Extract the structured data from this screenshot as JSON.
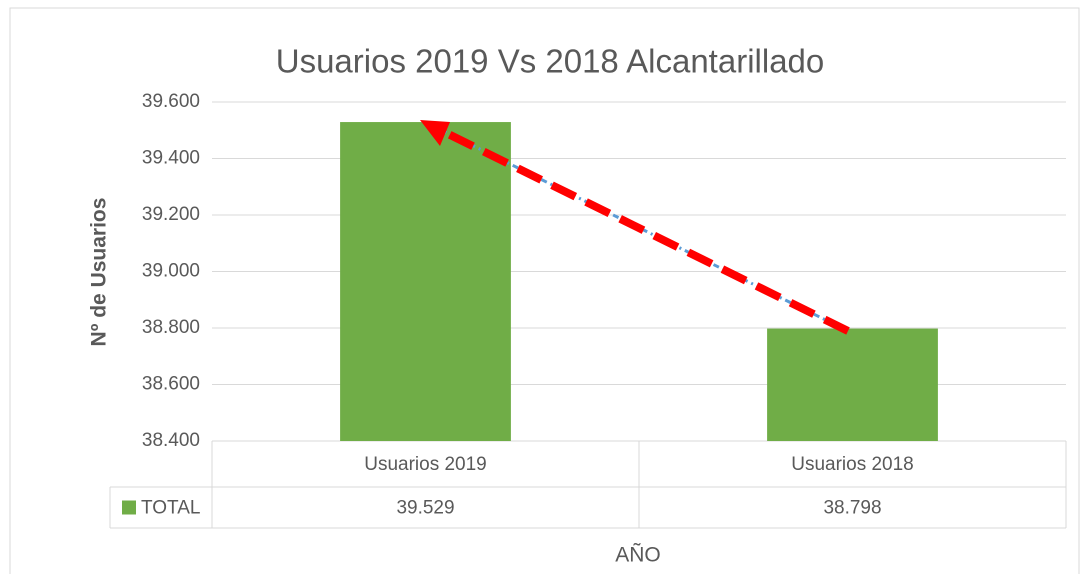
{
  "chart_data": {
    "type": "bar",
    "title": "Usuarios 2019 Vs 2018 Alcantarillado",
    "y_label": "Nº de Usuarios",
    "x_label": "AÑO",
    "categories": [
      "Usuarios 2019",
      "Usuarios 2018"
    ],
    "series": [
      {
        "name": "TOTAL",
        "color": "#70ad47",
        "values": [
          39529,
          38798
        ],
        "value_labels": [
          "39.529",
          "38.798"
        ]
      }
    ],
    "ylim": [
      38400,
      39600
    ],
    "yticks": [
      {
        "value": 38400,
        "label": "38.400"
      },
      {
        "value": 38600,
        "label": "38.600"
      },
      {
        "value": 38800,
        "label": "38.800"
      },
      {
        "value": 39000,
        "label": "39.000"
      },
      {
        "value": 39200,
        "label": "39.200"
      },
      {
        "value": 39400,
        "label": "39.400"
      },
      {
        "value": 39600,
        "label": "39.600"
      }
    ],
    "grid": true
  }
}
